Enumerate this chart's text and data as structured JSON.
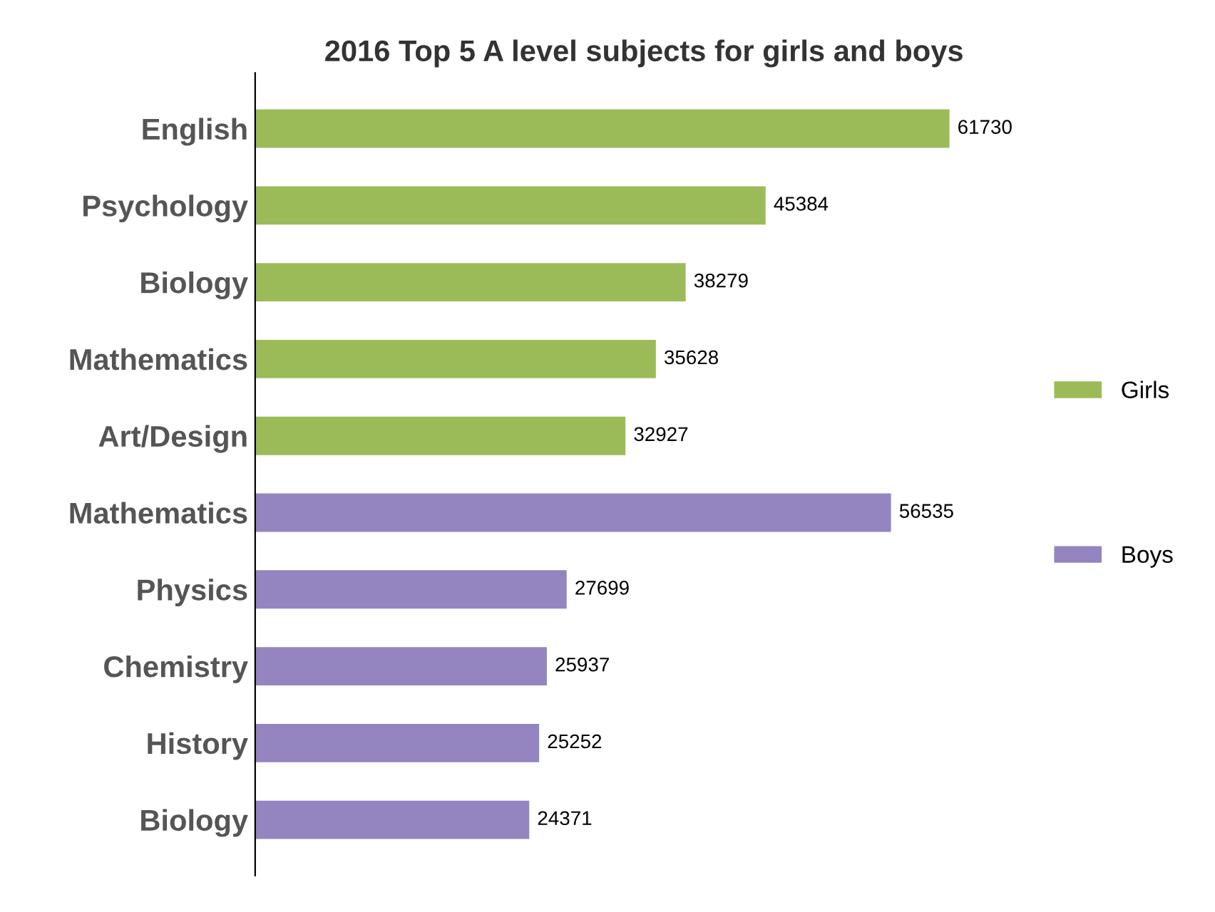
{
  "chart_data": {
    "type": "bar",
    "orientation": "horizontal",
    "title": "2016 Top 5 A level subjects for girls and boys",
    "categories": [
      "English",
      "Psychology",
      "Biology",
      "Mathematics",
      "Art/Design",
      "Mathematics",
      "Physics",
      "Chemistry",
      "History",
      "Biology"
    ],
    "series": [
      {
        "name": "Girls",
        "color": "#9bbb59",
        "values": [
          61730,
          45384,
          38279,
          35628,
          32927,
          null,
          null,
          null,
          null,
          null
        ]
      },
      {
        "name": "Boys",
        "color": "#9485c0",
        "values": [
          null,
          null,
          null,
          null,
          null,
          56535,
          27699,
          25937,
          25252,
          24371
        ]
      }
    ],
    "data_labels": true,
    "legend": "right",
    "grid": false
  }
}
